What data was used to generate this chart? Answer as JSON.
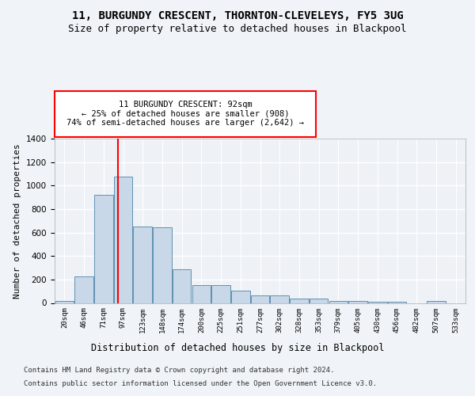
{
  "title1": "11, BURGUNDY CRESCENT, THORNTON-CLEVELEYS, FY5 3UG",
  "title2": "Size of property relative to detached houses in Blackpool",
  "xlabel": "Distribution of detached houses by size in Blackpool",
  "ylabel": "Number of detached properties",
  "footnote1": "Contains HM Land Registry data © Crown copyright and database right 2024.",
  "footnote2": "Contains public sector information licensed under the Open Government Licence v3.0.",
  "categories": [
    "20sqm",
    "46sqm",
    "71sqm",
    "97sqm",
    "123sqm",
    "148sqm",
    "174sqm",
    "200sqm",
    "225sqm",
    "251sqm",
    "277sqm",
    "302sqm",
    "328sqm",
    "353sqm",
    "379sqm",
    "405sqm",
    "430sqm",
    "456sqm",
    "482sqm",
    "507sqm",
    "533sqm"
  ],
  "values": [
    15,
    225,
    920,
    1075,
    650,
    645,
    290,
    155,
    155,
    105,
    65,
    65,
    35,
    35,
    20,
    20,
    12,
    12,
    0,
    15,
    0
  ],
  "bar_color": "#c8d8e8",
  "bar_edge_color": "#6090b0",
  "red_line_x": 2.75,
  "annotation_line1": "11 BURGUNDY CRESCENT: 92sqm",
  "annotation_line2": "← 25% of detached houses are smaller (908)",
  "annotation_line3": "74% of semi-detached houses are larger (2,642) →",
  "annotation_box_color": "white",
  "annotation_box_edge_color": "red",
  "ylim": [
    0,
    1400
  ],
  "yticks": [
    0,
    200,
    400,
    600,
    800,
    1000,
    1200,
    1400
  ],
  "bg_color": "#f0f4f8",
  "plot_bg_color": "#eef2f7",
  "grid_color": "white",
  "title1_fontsize": 10,
  "title2_fontsize": 9,
  "xlabel_fontsize": 8.5,
  "ylabel_fontsize": 8,
  "footnote_fontsize": 6.5,
  "annotation_fontsize": 7.5
}
